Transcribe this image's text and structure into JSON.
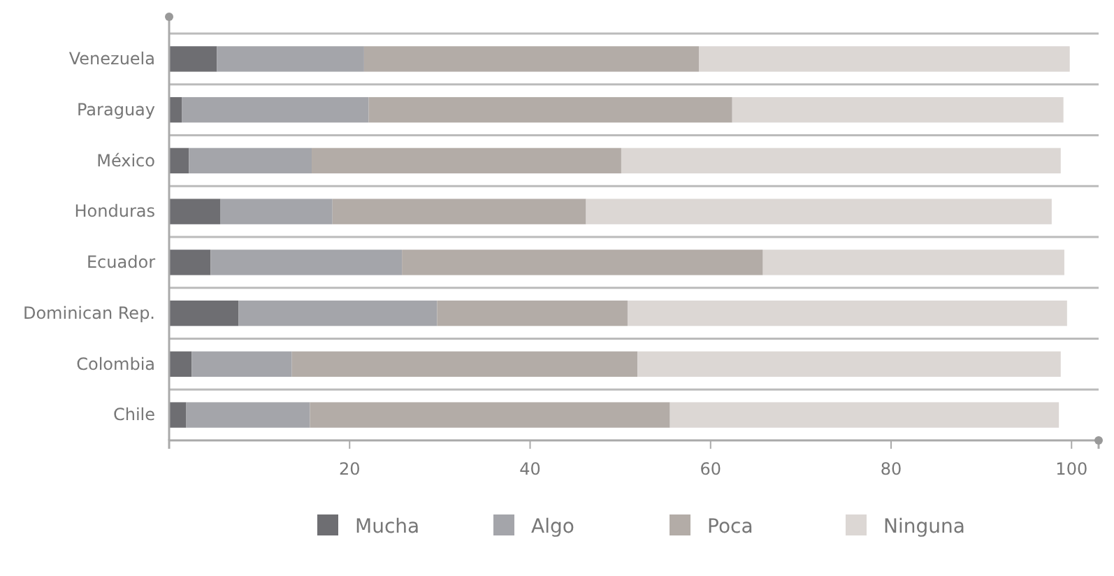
{
  "chart_data": {
    "type": "bar",
    "orientation": "horizontal",
    "stacked": true,
    "categories": [
      "Venezuela",
      "Paraguay",
      "México",
      "Honduras",
      "Ecuador",
      "Dominican Rep.",
      "Colombia",
      "Chile"
    ],
    "series": [
      {
        "name": "Mucha",
        "color": "#6e6e72",
        "values": [
          5.3,
          1.4,
          2.2,
          5.7,
          4.6,
          7.7,
          2.5,
          1.9
        ]
      },
      {
        "name": "Algo",
        "color": "#a4a5aa",
        "values": [
          16.3,
          20.7,
          13.6,
          12.4,
          21.2,
          22.0,
          11.1,
          13.7
        ]
      },
      {
        "name": "Poca",
        "color": "#b3aca7",
        "values": [
          37.1,
          40.3,
          34.3,
          28.1,
          40.0,
          21.1,
          38.3,
          39.9
        ]
      },
      {
        "name": "Ninguna",
        "color": "#dcd7d4",
        "values": [
          41.1,
          36.7,
          48.7,
          51.6,
          33.4,
          48.7,
          46.9,
          43.1
        ]
      }
    ],
    "xlim": [
      0,
      103
    ],
    "xticks": [
      20,
      40,
      60,
      80,
      100
    ],
    "grid": "y",
    "legend": "bottom"
  }
}
